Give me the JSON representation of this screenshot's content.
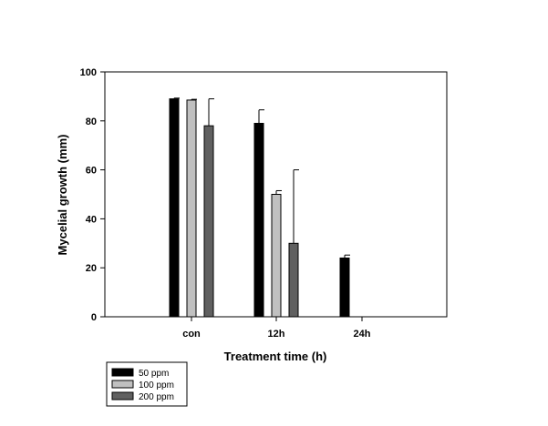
{
  "chart_data": {
    "type": "bar",
    "xlabel": "Treatment time (h)",
    "ylabel": "Mycelial growth (mm)",
    "categories": [
      "con",
      "12h",
      "24h"
    ],
    "ylim": [
      0,
      100
    ],
    "yticks": [
      0,
      20,
      40,
      60,
      80,
      100
    ],
    "grid": false,
    "legend": {
      "position": "bottom-left",
      "location": "below-plot"
    },
    "series": [
      {
        "name": "50 ppm",
        "color": "#000000",
        "values": [
          89,
          79,
          24
        ],
        "errors": [
          0.3,
          5.5,
          1.2
        ]
      },
      {
        "name": "100 ppm",
        "color": "#c0c0c0",
        "values": [
          88.5,
          50,
          0
        ],
        "errors": [
          0.3,
          1.5,
          0
        ]
      },
      {
        "name": "200 ppm",
        "color": "#606060",
        "values": [
          78,
          30,
          0
        ],
        "errors": [
          11,
          30,
          0
        ]
      }
    ]
  }
}
